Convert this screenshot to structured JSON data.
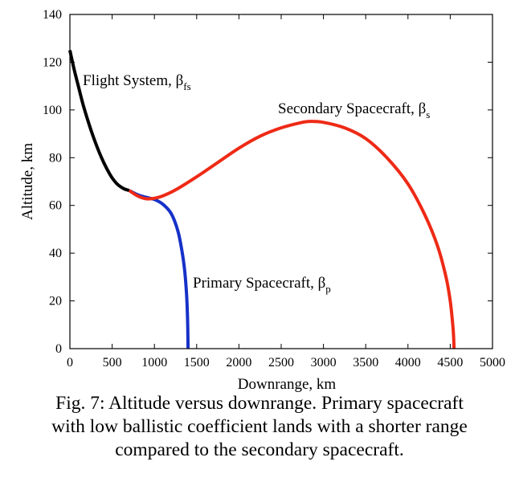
{
  "chart_data": {
    "type": "line",
    "xlabel": "Downrange, km",
    "ylabel": "Altitude, km",
    "xlim": [
      0,
      5000
    ],
    "ylim": [
      0,
      140
    ],
    "xticks": [
      0,
      500,
      1000,
      1500,
      2000,
      2500,
      3000,
      3500,
      4000,
      4500,
      5000
    ],
    "yticks": [
      0,
      20,
      40,
      60,
      80,
      100,
      120,
      140
    ],
    "grid": false,
    "series": [
      {
        "name": "Flight System, βfs",
        "label_main": "Flight System, β",
        "label_sub": "fs",
        "color": "#000000",
        "points": [
          [
            0,
            125
          ],
          [
            50,
            117
          ],
          [
            100,
            110
          ],
          [
            150,
            103
          ],
          [
            200,
            97
          ],
          [
            250,
            91.5
          ],
          [
            300,
            86.5
          ],
          [
            350,
            82
          ],
          [
            400,
            78
          ],
          [
            450,
            74.5
          ],
          [
            500,
            71.5
          ],
          [
            550,
            69.3
          ],
          [
            600,
            67.8
          ],
          [
            650,
            66.8
          ],
          [
            700,
            66.3
          ]
        ]
      },
      {
        "name": "Secondary Spacecraft, βs",
        "label_main": "Secondary Spacecraft, β",
        "label_sub": "s",
        "color": "#ee2a16",
        "points": [
          [
            700,
            66.3
          ],
          [
            800,
            64
          ],
          [
            900,
            62.8
          ],
          [
            1000,
            63
          ],
          [
            1100,
            64
          ],
          [
            1250,
            66.5
          ],
          [
            1500,
            72
          ],
          [
            1750,
            78
          ],
          [
            2000,
            84
          ],
          [
            2250,
            89
          ],
          [
            2500,
            92.5
          ],
          [
            2750,
            94.8
          ],
          [
            2850,
            95.2
          ],
          [
            3000,
            94.8
          ],
          [
            3250,
            92.5
          ],
          [
            3500,
            88
          ],
          [
            3750,
            80
          ],
          [
            4000,
            69
          ],
          [
            4200,
            56
          ],
          [
            4350,
            43
          ],
          [
            4450,
            30
          ],
          [
            4500,
            20
          ],
          [
            4530,
            10
          ],
          [
            4540,
            5
          ],
          [
            4545,
            0
          ]
        ]
      },
      {
        "name": "Primary Spacecraft, βp",
        "label_main": "Primary Spacecraft, β",
        "label_sub": "p",
        "color": "#1631c8",
        "points": [
          [
            700,
            66.3
          ],
          [
            800,
            64.5
          ],
          [
            900,
            63.4
          ],
          [
            1000,
            62.5
          ],
          [
            1100,
            60.5
          ],
          [
            1200,
            56.5
          ],
          [
            1280,
            49
          ],
          [
            1330,
            40
          ],
          [
            1360,
            32
          ],
          [
            1380,
            23
          ],
          [
            1390,
            15
          ],
          [
            1395,
            8
          ],
          [
            1397,
            3
          ],
          [
            1398,
            0
          ]
        ]
      }
    ]
  },
  "caption": {
    "line1": "Fig. 7: Altitude versus downrange. Primary spacecraft",
    "line2": "with low ballistic coefficient lands with a shorter range",
    "line3": "compared to the secondary spacecraft."
  }
}
